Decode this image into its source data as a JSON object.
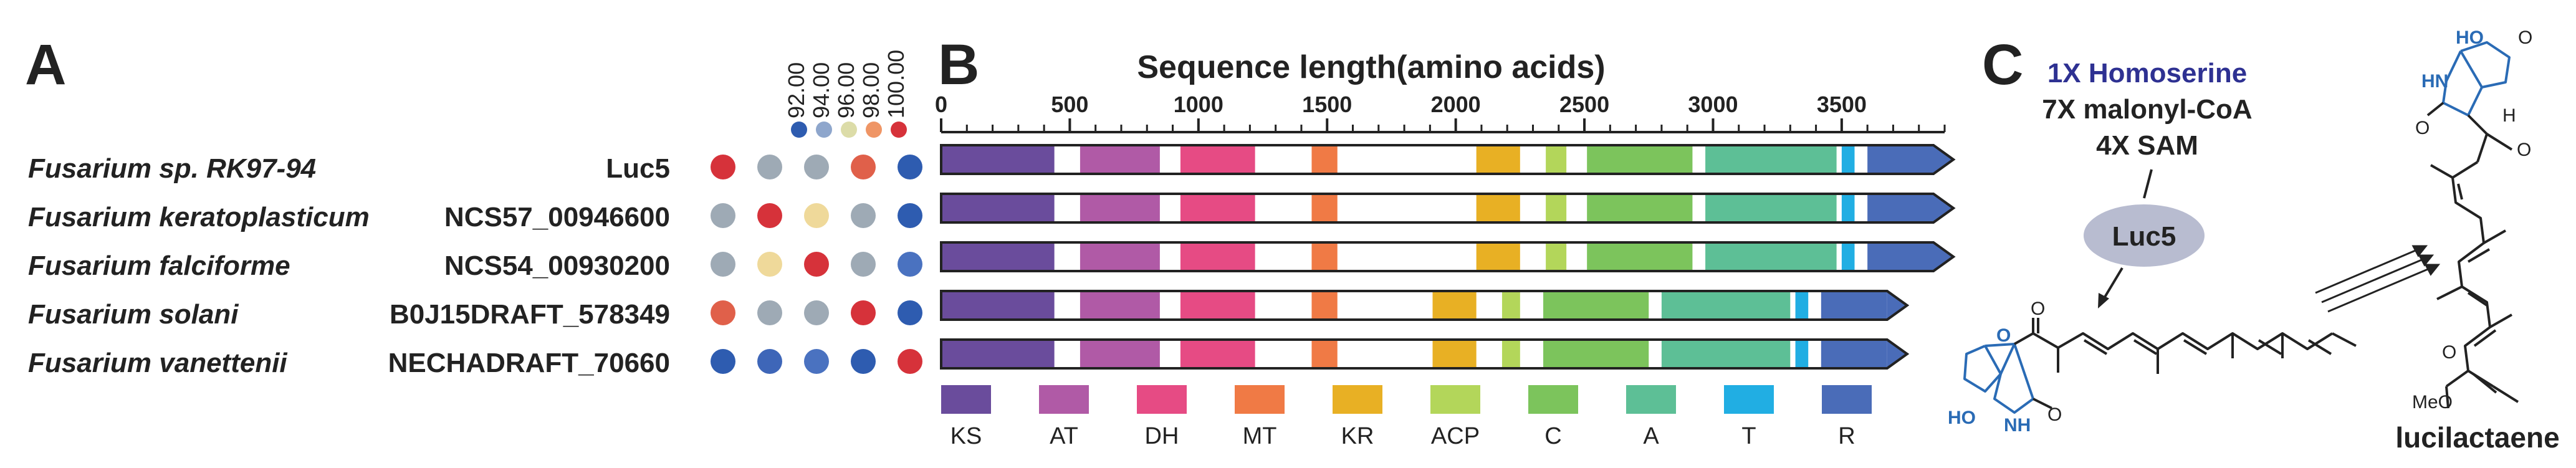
{
  "panels": {
    "a": "A",
    "b": "B",
    "c": "C"
  },
  "rows": [
    {
      "species": "Fusarium sp. RK97-94",
      "gene": "Luc5",
      "identity_colors": [
        "#d6323a",
        "#9eaab5",
        "#9eaab5",
        "#e0604a",
        "#2e5cb0"
      ]
    },
    {
      "species": "Fusarium keratoplasticum",
      "gene": "NCS57_00946600",
      "identity_colors": [
        "#9eaab5",
        "#d6323a",
        "#efd99a",
        "#9eaab5",
        "#2e5cb0"
      ]
    },
    {
      "species": "Fusarium falciforme",
      "gene": "NCS54_00930200",
      "identity_colors": [
        "#9eaab5",
        "#efd99a",
        "#d6323a",
        "#9eaab5",
        "#4a72c0"
      ]
    },
    {
      "species": "Fusarium solani",
      "gene": "B0J15DRAFT_578349",
      "identity_colors": [
        "#e0604a",
        "#9eaab5",
        "#9eaab5",
        "#d6323a",
        "#2e5cb0"
      ]
    },
    {
      "species": "Fusarium vanettenii",
      "gene": "NECHADRAFT_70660",
      "identity_colors": [
        "#2e5cb0",
        "#3e66b8",
        "#4a72c0",
        "#2e5cb0",
        "#d6323a"
      ]
    }
  ],
  "identity_legend": [
    {
      "label": "92.00",
      "color": "#2e5cb0"
    },
    {
      "label": "94.00",
      "color": "#8ea6cc"
    },
    {
      "label": "96.00",
      "color": "#dcdca8"
    },
    {
      "label": "98.00",
      "color": "#ef9565"
    },
    {
      "label": "100.00",
      "color": "#d6323a"
    }
  ],
  "domain_types": [
    {
      "name": "KS",
      "color": "#6a4c9c"
    },
    {
      "name": "AT",
      "color": "#b05aa6"
    },
    {
      "name": "DH",
      "color": "#e64b84"
    },
    {
      "name": "MT",
      "color": "#f07a45"
    },
    {
      "name": "KR",
      "color": "#e8b024"
    },
    {
      "name": "ACP",
      "color": "#b3d65a"
    },
    {
      "name": "C",
      "color": "#7cc45c"
    },
    {
      "name": "A",
      "color": "#5dbf96"
    },
    {
      "name": "T",
      "color": "#21aee3"
    },
    {
      "name": "R",
      "color": "#4a6cb8"
    }
  ],
  "chart_data": {
    "type": "gene-domain-architecture",
    "xlabel": "Sequence length(amino acids)",
    "xlim": [
      0,
      3900
    ],
    "xticks": [
      0,
      500,
      1000,
      1500,
      2000,
      2500,
      3000,
      3500
    ],
    "xtick_labels": [
      "0",
      "500",
      "1000",
      "1500",
      "2000",
      "2500",
      "3000",
      "3500"
    ],
    "proteins": [
      {
        "gene": "Luc5",
        "length": 3900,
        "domains": [
          {
            "type": "KS",
            "start": 0,
            "end": 440
          },
          {
            "type": "AT",
            "start": 540,
            "end": 850
          },
          {
            "type": "DH",
            "start": 930,
            "end": 1220
          },
          {
            "type": "MT",
            "start": 1440,
            "end": 1540
          },
          {
            "type": "KR",
            "start": 2080,
            "end": 2250
          },
          {
            "type": "ACP",
            "start": 2350,
            "end": 2430
          },
          {
            "type": "C",
            "start": 2510,
            "end": 2920
          },
          {
            "type": "A",
            "start": 2970,
            "end": 3480
          },
          {
            "type": "T",
            "start": 3500,
            "end": 3550
          },
          {
            "type": "R",
            "start": 3600,
            "end": 3900
          }
        ]
      },
      {
        "gene": "NCS57_00946600",
        "length": 3900,
        "domains": [
          {
            "type": "KS",
            "start": 0,
            "end": 440
          },
          {
            "type": "AT",
            "start": 540,
            "end": 850
          },
          {
            "type": "DH",
            "start": 930,
            "end": 1220
          },
          {
            "type": "MT",
            "start": 1440,
            "end": 1540
          },
          {
            "type": "KR",
            "start": 2080,
            "end": 2250
          },
          {
            "type": "ACP",
            "start": 2350,
            "end": 2430
          },
          {
            "type": "C",
            "start": 2510,
            "end": 2920
          },
          {
            "type": "A",
            "start": 2970,
            "end": 3480
          },
          {
            "type": "T",
            "start": 3500,
            "end": 3550
          },
          {
            "type": "R",
            "start": 3600,
            "end": 3900
          }
        ]
      },
      {
        "gene": "NCS54_00930200",
        "length": 3900,
        "domains": [
          {
            "type": "KS",
            "start": 0,
            "end": 440
          },
          {
            "type": "AT",
            "start": 540,
            "end": 850
          },
          {
            "type": "DH",
            "start": 930,
            "end": 1220
          },
          {
            "type": "MT",
            "start": 1440,
            "end": 1540
          },
          {
            "type": "KR",
            "start": 2080,
            "end": 2250
          },
          {
            "type": "ACP",
            "start": 2350,
            "end": 2430
          },
          {
            "type": "C",
            "start": 2510,
            "end": 2920
          },
          {
            "type": "A",
            "start": 2970,
            "end": 3480
          },
          {
            "type": "T",
            "start": 3500,
            "end": 3550
          },
          {
            "type": "R",
            "start": 3600,
            "end": 3900
          }
        ]
      },
      {
        "gene": "B0J15DRAFT_578349",
        "length": 3720,
        "domains": [
          {
            "type": "KS",
            "start": 0,
            "end": 440
          },
          {
            "type": "AT",
            "start": 540,
            "end": 850
          },
          {
            "type": "DH",
            "start": 930,
            "end": 1220
          },
          {
            "type": "MT",
            "start": 1440,
            "end": 1540
          },
          {
            "type": "KR",
            "start": 1910,
            "end": 2080
          },
          {
            "type": "ACP",
            "start": 2180,
            "end": 2250
          },
          {
            "type": "C",
            "start": 2340,
            "end": 2750
          },
          {
            "type": "A",
            "start": 2800,
            "end": 3300
          },
          {
            "type": "T",
            "start": 3320,
            "end": 3370
          },
          {
            "type": "R",
            "start": 3420,
            "end": 3720
          }
        ]
      },
      {
        "gene": "NECHADRAFT_70660",
        "length": 3720,
        "domains": [
          {
            "type": "KS",
            "start": 0,
            "end": 440
          },
          {
            "type": "AT",
            "start": 540,
            "end": 850
          },
          {
            "type": "DH",
            "start": 930,
            "end": 1220
          },
          {
            "type": "MT",
            "start": 1440,
            "end": 1540
          },
          {
            "type": "KR",
            "start": 1910,
            "end": 2080
          },
          {
            "type": "ACP",
            "start": 2180,
            "end": 2250
          },
          {
            "type": "C",
            "start": 2340,
            "end": 2750
          },
          {
            "type": "A",
            "start": 2800,
            "end": 3300
          },
          {
            "type": "T",
            "start": 3320,
            "end": 3370
          },
          {
            "type": "R",
            "start": 3420,
            "end": 3720
          }
        ]
      }
    ]
  },
  "reaction": {
    "substrates": [
      "1X Homoserine",
      "7X malonyl-CoA",
      "4X SAM"
    ],
    "enzyme": "Luc5",
    "product": "lucilactaene",
    "atoms": {
      "ho": "HO",
      "hn": "HN",
      "nh": "NH",
      "o": "O",
      "h": "H",
      "meo": "MeO"
    }
  }
}
